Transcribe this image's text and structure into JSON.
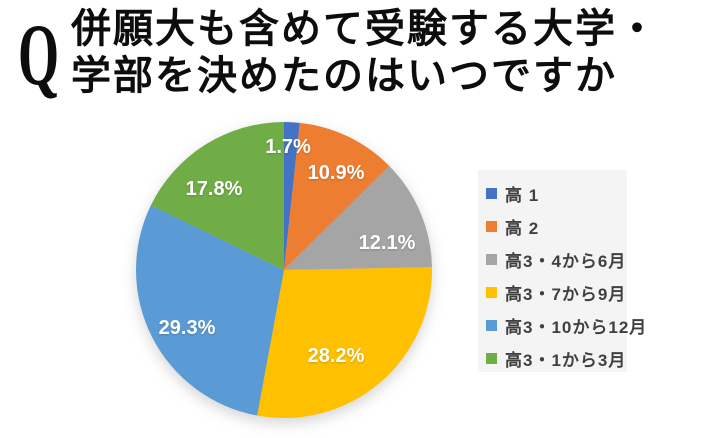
{
  "header": {
    "q": "Q",
    "title_line1": "併願大も含めて受験する大学・",
    "title_line2": "学部を決めたのはいつですか"
  },
  "chart_data": {
    "type": "pie",
    "title": "併願大も含めて受験する大学・学部を決めたのはいつですか",
    "start_angle_deg": 0,
    "direction": "clockwise",
    "legend_position": "right",
    "legend_background": "#f4f4f4",
    "label_color": "#ffffff",
    "slices": [
      {
        "label": "高 1",
        "value": 1.7,
        "display": "1.7%",
        "color": "#4472C4"
      },
      {
        "label": "高 2",
        "value": 10.9,
        "display": "10.9%",
        "color": "#ED7D31"
      },
      {
        "label": "高3・4から6月",
        "value": 12.1,
        "display": "12.1%",
        "color": "#A5A5A5"
      },
      {
        "label": "高3・7から9月",
        "value": 28.2,
        "display": "28.2%",
        "color": "#FFC000"
      },
      {
        "label": "高3・10から12月",
        "value": 29.3,
        "display": "29.3%",
        "color": "#5B9BD5"
      },
      {
        "label": "高3・1から3月",
        "value": 17.8,
        "display": "17.8%",
        "color": "#70AD47"
      }
    ]
  }
}
